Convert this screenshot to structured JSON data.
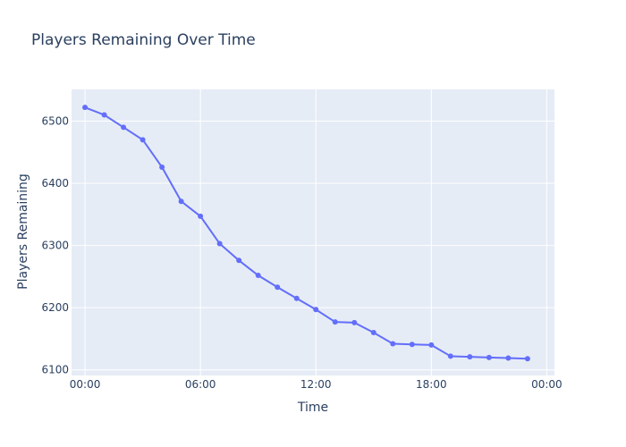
{
  "chart_data": {
    "type": "line",
    "title": "Players Remaining Over Time",
    "xlabel": "Time",
    "ylabel": "Players Remaining",
    "x_unit": "hours",
    "x_ticks": [
      {
        "value": 0,
        "label": "00:00"
      },
      {
        "value": 6,
        "label": "06:00"
      },
      {
        "value": 12,
        "label": "12:00"
      },
      {
        "value": 18,
        "label": "18:00"
      },
      {
        "value": 24,
        "label": "00:00"
      }
    ],
    "y_ticks": [
      6100,
      6200,
      6300,
      6400,
      6500
    ],
    "xlim": [
      -0.7,
      24.4
    ],
    "ylim": [
      6091,
      6551
    ],
    "grid": true,
    "colors": {
      "plot_bg": "#e5ecf6",
      "series": "#636efa",
      "text": "#2a3f5f"
    },
    "series": [
      {
        "x": [
          0,
          1,
          2,
          3,
          4,
          5,
          6,
          7,
          8,
          9,
          10,
          11,
          12,
          13,
          14,
          15,
          16,
          17,
          18,
          19,
          20,
          21,
          22,
          23
        ],
        "values": [
          6522,
          6510,
          6490,
          6470,
          6426,
          6371,
          6347,
          6303,
          6276,
          6252,
          6233,
          6215,
          6197,
          6177,
          6176,
          6160,
          6142,
          6141,
          6140,
          6122,
          6121,
          6120,
          6119,
          6118
        ]
      }
    ]
  }
}
